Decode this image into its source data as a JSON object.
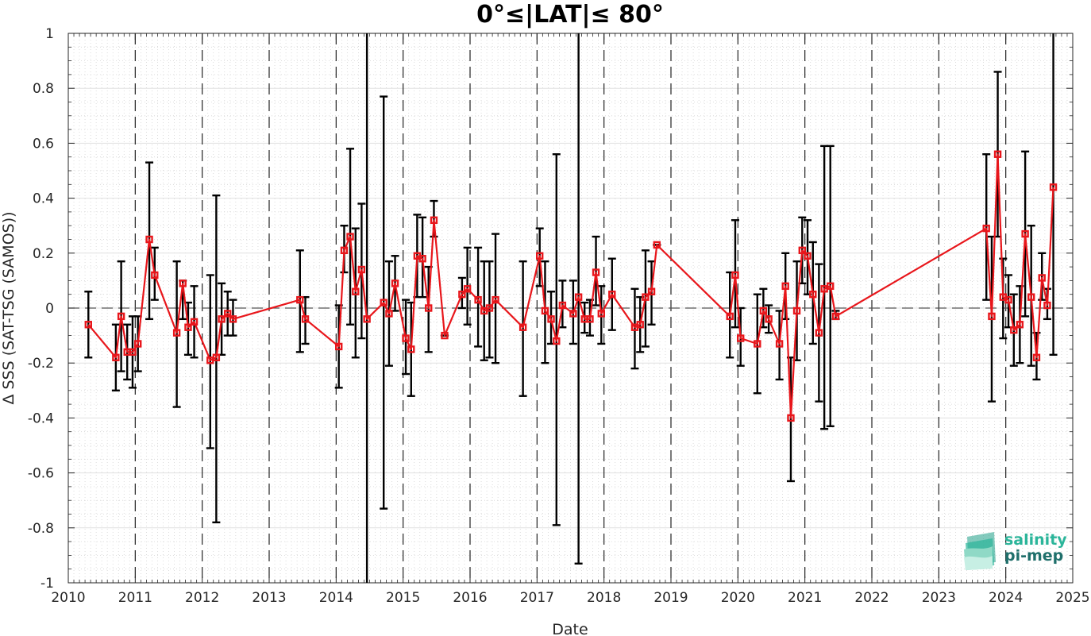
{
  "chart_data": {
    "type": "scatter",
    "title": "0°≤|LAT|≤ 80°",
    "xlabel": "Date",
    "ylabel": "Δ SSS (SAT-TSG (SAMOS))",
    "xlim": [
      2010,
      2025
    ],
    "ylim": [
      -1,
      1
    ],
    "x_ticks": [
      "2010",
      "2011",
      "2012",
      "2013",
      "2014",
      "2015",
      "2016",
      "2017",
      "2018",
      "2019",
      "2020",
      "2021",
      "2022",
      "2023",
      "2024",
      "2025"
    ],
    "y_ticks": [
      "1",
      "0.8",
      "0.6",
      "0.4",
      "0.2",
      "0",
      "-0.2",
      "-0.4",
      "-0.6",
      "-0.8",
      "-1"
    ],
    "grid": true,
    "year_boundaries": "dashed vertical lines",
    "zero_line": "dashed horizontal line",
    "series": [
      {
        "color": "#e8161b",
        "marker": "square",
        "errorbar_color": "#000000",
        "points": [
          {
            "x": 2010.3,
            "y": -0.06,
            "lo": -0.18,
            "hi": 0.06
          },
          {
            "x": 2010.71,
            "y": -0.18,
            "lo": -0.3,
            "hi": -0.06
          },
          {
            "x": 2010.79,
            "y": -0.03,
            "lo": -0.23,
            "hi": 0.17
          },
          {
            "x": 2010.88,
            "y": -0.16,
            "lo": -0.26,
            "hi": -0.06
          },
          {
            "x": 2010.96,
            "y": -0.16,
            "lo": -0.29,
            "hi": -0.03
          },
          {
            "x": 2011.04,
            "y": -0.13,
            "lo": -0.23,
            "hi": -0.03
          },
          {
            "x": 2011.21,
            "y": 0.25,
            "lo": -0.04,
            "hi": 0.53
          },
          {
            "x": 2011.29,
            "y": 0.12,
            "lo": 0.03,
            "hi": 0.22
          },
          {
            "x": 2011.62,
            "y": -0.09,
            "lo": -0.36,
            "hi": 0.17
          },
          {
            "x": 2011.71,
            "y": 0.09,
            "lo": -0.04,
            "hi": 0.1
          },
          {
            "x": 2011.79,
            "y": -0.07,
            "lo": -0.17,
            "hi": 0.02
          },
          {
            "x": 2011.88,
            "y": -0.05,
            "lo": -0.18,
            "hi": 0.08
          },
          {
            "x": 2012.12,
            "y": -0.19,
            "lo": -0.51,
            "hi": 0.12
          },
          {
            "x": 2012.21,
            "y": -0.18,
            "lo": -0.78,
            "hi": 0.41
          },
          {
            "x": 2012.29,
            "y": -0.04,
            "lo": -0.17,
            "hi": 0.09
          },
          {
            "x": 2012.38,
            "y": -0.02,
            "lo": -0.1,
            "hi": 0.06
          },
          {
            "x": 2012.46,
            "y": -0.04,
            "lo": -0.1,
            "hi": 0.03
          },
          {
            "x": 2013.46,
            "y": 0.03,
            "lo": -0.16,
            "hi": 0.21
          },
          {
            "x": 2013.54,
            "y": -0.04,
            "lo": -0.13,
            "hi": 0.04
          },
          {
            "x": 2014.04,
            "y": -0.14,
            "lo": -0.29,
            "hi": 0.01
          },
          {
            "x": 2014.12,
            "y": 0.21,
            "lo": 0.13,
            "hi": 0.3
          },
          {
            "x": 2014.21,
            "y": 0.26,
            "lo": -0.06,
            "hi": 0.58
          },
          {
            "x": 2014.29,
            "y": 0.06,
            "lo": -0.18,
            "hi": 0.29
          },
          {
            "x": 2014.38,
            "y": 0.14,
            "lo": -0.11,
            "hi": 0.38
          },
          {
            "x": 2014.46,
            "y": -0.04,
            "lo": -1.0,
            "hi": 1.0
          },
          {
            "x": 2014.71,
            "y": 0.02,
            "lo": -0.73,
            "hi": 0.77
          },
          {
            "x": 2014.79,
            "y": -0.02,
            "lo": -0.21,
            "hi": 0.17
          },
          {
            "x": 2014.88,
            "y": 0.09,
            "lo": -0.01,
            "hi": 0.19
          },
          {
            "x": 2015.04,
            "y": -0.11,
            "lo": -0.24,
            "hi": 0.03
          },
          {
            "x": 2015.12,
            "y": -0.15,
            "lo": -0.32,
            "hi": 0.02
          },
          {
            "x": 2015.21,
            "y": 0.19,
            "lo": 0.04,
            "hi": 0.34
          },
          {
            "x": 2015.29,
            "y": 0.18,
            "lo": 0.04,
            "hi": 0.33
          },
          {
            "x": 2015.38,
            "y": 0.0,
            "lo": -0.16,
            "hi": 0.15
          },
          {
            "x": 2015.46,
            "y": 0.32,
            "lo": 0.26,
            "hi": 0.39
          },
          {
            "x": 2015.62,
            "y": -0.1,
            "lo": -0.1,
            "hi": -0.1
          },
          {
            "x": 2015.88,
            "y": 0.05,
            "lo": 0.0,
            "hi": 0.11
          },
          {
            "x": 2015.96,
            "y": 0.07,
            "lo": -0.06,
            "hi": 0.22
          },
          {
            "x": 2016.12,
            "y": 0.03,
            "lo": -0.14,
            "hi": 0.22
          },
          {
            "x": 2016.21,
            "y": -0.01,
            "lo": -0.19,
            "hi": 0.17
          },
          {
            "x": 2016.29,
            "y": 0.0,
            "lo": -0.18,
            "hi": 0.17
          },
          {
            "x": 2016.38,
            "y": 0.03,
            "lo": -0.2,
            "hi": 0.27
          },
          {
            "x": 2016.79,
            "y": -0.07,
            "lo": -0.32,
            "hi": 0.17
          },
          {
            "x": 2017.04,
            "y": 0.19,
            "lo": 0.08,
            "hi": 0.29
          },
          {
            "x": 2017.12,
            "y": -0.01,
            "lo": -0.2,
            "hi": 0.17
          },
          {
            "x": 2017.21,
            "y": -0.04,
            "lo": -0.13,
            "hi": 0.06
          },
          {
            "x": 2017.29,
            "y": -0.12,
            "lo": -0.79,
            "hi": 0.56
          },
          {
            "x": 2017.38,
            "y": 0.01,
            "lo": -0.07,
            "hi": 0.1
          },
          {
            "x": 2017.54,
            "y": -0.02,
            "lo": -0.13,
            "hi": 0.1
          },
          {
            "x": 2017.62,
            "y": 0.04,
            "lo": -0.93,
            "hi": 1.0
          },
          {
            "x": 2017.71,
            "y": -0.04,
            "lo": -0.09,
            "hi": 0.02
          },
          {
            "x": 2017.79,
            "y": -0.04,
            "lo": -0.1,
            "hi": 0.03
          },
          {
            "x": 2017.88,
            "y": 0.13,
            "lo": 0.01,
            "hi": 0.26
          },
          {
            "x": 2017.96,
            "y": -0.02,
            "lo": -0.13,
            "hi": 0.08
          },
          {
            "x": 2018.12,
            "y": 0.05,
            "lo": -0.08,
            "hi": 0.18
          },
          {
            "x": 2018.46,
            "y": -0.07,
            "lo": -0.22,
            "hi": 0.07
          },
          {
            "x": 2018.54,
            "y": -0.06,
            "lo": -0.16,
            "hi": 0.04
          },
          {
            "x": 2018.62,
            "y": 0.04,
            "lo": -0.14,
            "hi": 0.21
          },
          {
            "x": 2018.71,
            "y": 0.06,
            "lo": -0.06,
            "hi": 0.17
          },
          {
            "x": 2018.79,
            "y": 0.23,
            "lo": 0.23,
            "hi": 0.23
          },
          {
            "x": 2019.88,
            "y": -0.03,
            "lo": -0.18,
            "hi": 0.13
          },
          {
            "x": 2019.96,
            "y": 0.12,
            "lo": -0.07,
            "hi": 0.32
          },
          {
            "x": 2020.04,
            "y": -0.11,
            "lo": -0.21,
            "hi": 0.0
          },
          {
            "x": 2020.29,
            "y": -0.13,
            "lo": -0.31,
            "hi": 0.05
          },
          {
            "x": 2020.38,
            "y": -0.01,
            "lo": -0.07,
            "hi": 0.07
          },
          {
            "x": 2020.46,
            "y": -0.04,
            "lo": -0.09,
            "hi": 0.01
          },
          {
            "x": 2020.62,
            "y": -0.13,
            "lo": -0.26,
            "hi": -0.01
          },
          {
            "x": 2020.71,
            "y": 0.08,
            "lo": -0.04,
            "hi": 0.2
          },
          {
            "x": 2020.79,
            "y": -0.4,
            "lo": -0.63,
            "hi": -0.18
          },
          {
            "x": 2020.88,
            "y": -0.01,
            "lo": -0.19,
            "hi": 0.17
          },
          {
            "x": 2020.96,
            "y": 0.21,
            "lo": 0.09,
            "hi": 0.33
          },
          {
            "x": 2021.04,
            "y": 0.19,
            "lo": 0.05,
            "hi": 0.32
          },
          {
            "x": 2021.12,
            "y": 0.05,
            "lo": -0.13,
            "hi": 0.24
          },
          {
            "x": 2021.21,
            "y": -0.09,
            "lo": -0.34,
            "hi": 0.16
          },
          {
            "x": 2021.29,
            "y": 0.07,
            "lo": -0.44,
            "hi": 0.59
          },
          {
            "x": 2021.38,
            "y": 0.08,
            "lo": -0.43,
            "hi": 0.59
          },
          {
            "x": 2021.46,
            "y": -0.03,
            "lo": -0.04,
            "hi": -0.01
          },
          {
            "x": 2023.71,
            "y": 0.29,
            "lo": 0.03,
            "hi": 0.56
          },
          {
            "x": 2023.79,
            "y": -0.03,
            "lo": -0.34,
            "hi": 0.26
          },
          {
            "x": 2023.88,
            "y": 0.56,
            "lo": 0.26,
            "hi": 0.86
          },
          {
            "x": 2023.96,
            "y": 0.04,
            "lo": -0.11,
            "hi": 0.18
          },
          {
            "x": 2024.04,
            "y": 0.03,
            "lo": -0.07,
            "hi": 0.12
          },
          {
            "x": 2024.12,
            "y": -0.08,
            "lo": -0.21,
            "hi": 0.05
          },
          {
            "x": 2024.21,
            "y": -0.06,
            "lo": -0.2,
            "hi": 0.08
          },
          {
            "x": 2024.29,
            "y": 0.27,
            "lo": -0.03,
            "hi": 0.57
          },
          {
            "x": 2024.38,
            "y": 0.04,
            "lo": -0.21,
            "hi": 0.3
          },
          {
            "x": 2024.46,
            "y": -0.18,
            "lo": -0.26,
            "hi": -0.09
          },
          {
            "x": 2024.54,
            "y": 0.11,
            "lo": 0.03,
            "hi": 0.2
          },
          {
            "x": 2024.62,
            "y": 0.01,
            "lo": -0.04,
            "hi": 0.07
          },
          {
            "x": 2024.71,
            "y": 0.44,
            "lo": -0.17,
            "hi": 1.0
          }
        ]
      }
    ]
  },
  "logo": {
    "line1": "salinity",
    "line2": "pi-mep",
    "color1": "#2bb59a",
    "color2": "#1f6f6b"
  }
}
